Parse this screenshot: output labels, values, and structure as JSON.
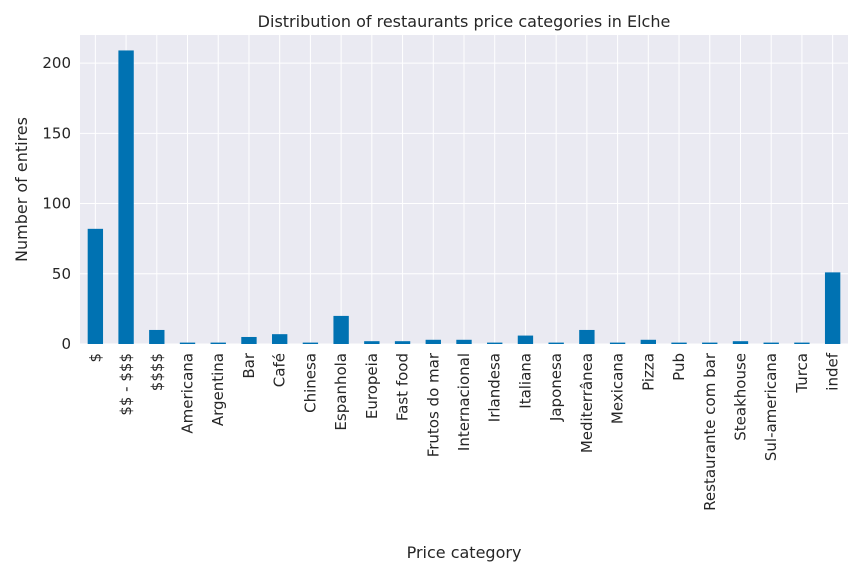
{
  "chart_data": {
    "type": "bar",
    "title": "Distribution of restaurants price categories in Elche",
    "xlabel": "Price category",
    "ylabel": "Number of entires",
    "categories": [
      "$",
      "$$ - $$$",
      "$$$$",
      "Americana",
      "Argentina",
      "Bar",
      "Café",
      "Chinesa",
      "Espanhola",
      "Europeia",
      "Fast food",
      "Frutos do mar",
      "Internacional",
      "Irlandesa",
      "Italiana",
      "Japonesa",
      "Mediterrânea",
      "Mexicana",
      "Pizza",
      "Pub",
      "Restaurante com bar",
      "Steakhouse",
      "Sul-americana",
      "Turca",
      "indef"
    ],
    "values": [
      82,
      209,
      10,
      1,
      1,
      5,
      7,
      1,
      20,
      2,
      2,
      3,
      3,
      1,
      6,
      1,
      10,
      1,
      3,
      1,
      1,
      2,
      1,
      1,
      51
    ],
    "ylim": [
      0,
      220
    ],
    "yticks": [
      0,
      50,
      100,
      150,
      200
    ],
    "grid": true,
    "legend": "none",
    "colors": {
      "bar": "#0072B2",
      "background": "#EAEAF2",
      "grid": "#FFFFFF",
      "text": "#262626"
    }
  }
}
